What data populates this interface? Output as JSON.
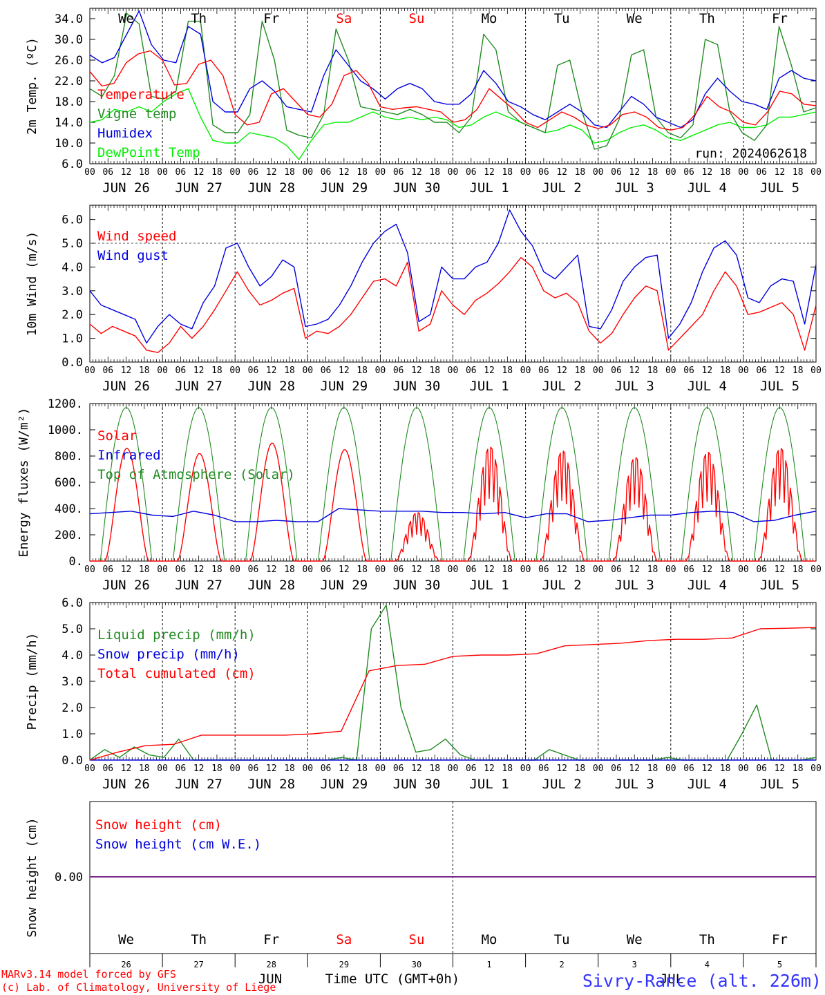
{
  "run_label": "run: 2024062618",
  "station": "Sivry-Rance (alt. 226m)",
  "credits": [
    "MARv3.14 model forced by GFS",
    "(c) Lab. of Climatology, University of Liege"
  ],
  "time_axis_label": "Time UTC (GMT+0h)",
  "month_labels": [
    "JUN",
    "JUL"
  ],
  "days": [
    "JUN 26",
    "JUN 27",
    "JUN 28",
    "JUN 29",
    "JUN 30",
    "JUL  1",
    "JUL  2",
    "JUL  3",
    "JUL  4",
    "JUL  5"
  ],
  "weekdays": [
    "We",
    "Th",
    "Fr",
    "Sa",
    "Su",
    "Mo",
    "Tu",
    "We",
    "Th",
    "Fr"
  ],
  "day_numbers": [
    "26",
    "27",
    "28",
    "29",
    "30",
    "1",
    "2",
    "3",
    "4",
    "5"
  ],
  "hour_ticks": [
    "00",
    "06",
    "12",
    "18"
  ],
  "colors": {
    "weekday": "#000000",
    "weekend": "#ff0000"
  },
  "chart_data": [
    {
      "type": "line",
      "ylabel": "2m Temp. (ºC)",
      "ylim": [
        6,
        36
      ],
      "yticks": [
        "6.0",
        "10.0",
        "14.0",
        "18.0",
        "22.0",
        "26.0",
        "30.0",
        "34.0"
      ],
      "series": [
        {
          "name": "Temperature",
          "color": "#ff0000",
          "values": [
            23.8,
            21.0,
            21.5,
            25.5,
            27.2,
            27.8,
            26.0,
            21.2,
            21.5,
            25.2,
            26.0,
            23.0,
            15.5,
            13.5,
            14.0,
            19.5,
            20.5,
            18.0,
            15.5,
            15.0,
            17.5,
            23.0,
            24.0,
            21.5,
            17.0,
            16.5,
            16.8,
            17.0,
            16.5,
            16.0,
            14.0,
            14.5,
            16.5,
            20.5,
            18.5,
            16.5,
            14.0,
            13.0,
            14.5,
            16.0,
            15.0,
            13.5,
            12.8,
            13.5,
            15.5,
            16.0,
            15.0,
            13.0,
            12.5,
            13.0,
            15.5,
            19.0,
            17.0,
            16.0,
            14.0,
            13.5,
            16.0,
            20.0,
            19.5,
            17.5,
            17.2
          ]
        },
        {
          "name": "Vigne temp",
          "color": "#228b22",
          "values": [
            20.5,
            19.0,
            23.0,
            35.0,
            33.0,
            19.0,
            18.5,
            20.0,
            33.5,
            33.5,
            13.5,
            12.0,
            12.0,
            15.5,
            33.5,
            26.0,
            12.5,
            11.5,
            11.0,
            15.5,
            32.0,
            26.0,
            17.0,
            16.5,
            16.0,
            15.5,
            16.5,
            15.5,
            14.0,
            14.0,
            12.0,
            15.0,
            31.0,
            28.0,
            16.0,
            14.0,
            13.0,
            12.0,
            25.0,
            26.0,
            16.0,
            8.8,
            9.5,
            14.5,
            27.0,
            28.0,
            15.0,
            12.0,
            11.0,
            13.5,
            30.0,
            29.0,
            16.0,
            12.0,
            10.5,
            13.5,
            32.5,
            25.0,
            16.0,
            16.8
          ]
        },
        {
          "name": "Humidex",
          "color": "#0000dd",
          "values": [
            27.0,
            25.5,
            26.5,
            31.0,
            35.5,
            29.0,
            26.0,
            25.5,
            32.5,
            31.0,
            18.0,
            16.0,
            16.0,
            20.5,
            22.0,
            20.0,
            17.0,
            16.5,
            16.0,
            23.0,
            28.0,
            25.0,
            22.0,
            20.5,
            18.5,
            20.5,
            21.5,
            20.5,
            18.0,
            17.5,
            17.5,
            19.5,
            24.0,
            21.5,
            18.0,
            17.0,
            15.5,
            14.5,
            16.0,
            17.5,
            16.0,
            13.5,
            13.0,
            16.0,
            19.0,
            17.5,
            15.0,
            14.0,
            13.0,
            14.5,
            19.5,
            22.5,
            20.0,
            18.0,
            17.5,
            16.5,
            22.5,
            24.0,
            22.5,
            22.0
          ]
        },
        {
          "name": "DewPoint Temp",
          "color": "#00ee00",
          "values": [
            14.0,
            14.5,
            16.5,
            16.0,
            17.0,
            16.0,
            18.0,
            19.5,
            20.5,
            15.0,
            10.5,
            10.0,
            10.0,
            12.0,
            11.5,
            11.0,
            9.5,
            6.8,
            10.5,
            13.5,
            14.0,
            14.0,
            15.0,
            16.0,
            15.0,
            14.5,
            15.0,
            14.5,
            15.0,
            14.5,
            13.0,
            13.5,
            15.0,
            16.0,
            15.0,
            14.0,
            13.0,
            12.0,
            12.5,
            13.5,
            12.5,
            10.0,
            10.5,
            12.0,
            13.0,
            13.5,
            12.5,
            11.0,
            10.5,
            11.5,
            12.5,
            13.5,
            14.0,
            13.0,
            13.0,
            13.5,
            15.0,
            15.0,
            15.5,
            16.0
          ]
        }
      ]
    },
    {
      "type": "line",
      "ylabel": "10m Wind (m/s)",
      "ylim": [
        0,
        6.6
      ],
      "yticks": [
        "0.0",
        "1.0",
        "2.0",
        "3.0",
        "4.0",
        "5.0",
        "6.0"
      ],
      "reference_line": 5.0,
      "series": [
        {
          "name": "Wind speed",
          "color": "#ff0000",
          "values": [
            1.6,
            1.2,
            1.5,
            1.3,
            1.1,
            0.5,
            0.4,
            0.8,
            1.5,
            1.0,
            1.5,
            2.2,
            3.0,
            3.8,
            3.0,
            2.4,
            2.6,
            2.9,
            3.1,
            1.0,
            1.3,
            1.2,
            1.5,
            2.0,
            2.7,
            3.4,
            3.5,
            3.2,
            4.2,
            1.3,
            1.6,
            3.0,
            2.4,
            2.0,
            2.6,
            2.9,
            3.3,
            3.8,
            4.4,
            4.0,
            3.0,
            2.7,
            2.9,
            2.5,
            1.3,
            0.8,
            1.2,
            2.0,
            2.7,
            3.2,
            3.0,
            0.5,
            1.0,
            1.5,
            2.0,
            3.0,
            3.8,
            3.2,
            2.0,
            2.1,
            2.3,
            2.5,
            2.0,
            0.5,
            2.4
          ]
        },
        {
          "name": "Wind gust",
          "color": "#0000dd",
          "values": [
            3.0,
            2.4,
            2.2,
            2.0,
            1.8,
            0.8,
            1.5,
            2.0,
            1.6,
            1.4,
            2.5,
            3.2,
            4.8,
            5.0,
            4.0,
            3.2,
            3.6,
            4.3,
            4.0,
            1.5,
            1.6,
            1.8,
            2.4,
            3.2,
            4.2,
            5.0,
            5.5,
            5.8,
            4.6,
            1.7,
            2.0,
            4.0,
            3.5,
            3.5,
            4.0,
            4.2,
            5.0,
            6.4,
            5.5,
            4.9,
            3.8,
            3.5,
            4.0,
            4.5,
            1.5,
            1.4,
            2.2,
            3.4,
            4.0,
            4.4,
            4.5,
            1.0,
            1.6,
            2.5,
            3.8,
            4.8,
            5.1,
            4.5,
            2.7,
            2.5,
            3.2,
            3.5,
            3.4,
            1.6,
            4.1
          ]
        }
      ]
    },
    {
      "type": "line",
      "ylabel": "Energy fluxes (W/m²)",
      "ylim": [
        0,
        1200
      ],
      "yticks": [
        "0.",
        "200.",
        "400.",
        "600.",
        "800.",
        "1000.",
        "1200."
      ],
      "series": [
        {
          "name": "Solar",
          "color": "#ff0000",
          "peaks": [
            860,
            820,
            900,
            850,
            370,
            870,
            840,
            790,
            830,
            860
          ]
        },
        {
          "name": "Infrared",
          "color": "#0000dd",
          "values": [
            360,
            370,
            380,
            350,
            340,
            380,
            350,
            300,
            300,
            310,
            300,
            300,
            400,
            390,
            380,
            380,
            380,
            370,
            370,
            360,
            370,
            330,
            360,
            360,
            300,
            310,
            330,
            350,
            350,
            370,
            380,
            370,
            300,
            310,
            350,
            380
          ]
        },
        {
          "name": "Top of Atmosphere (Solar)",
          "color": "#228b22",
          "peak": 1170
        }
      ]
    },
    {
      "type": "line",
      "ylabel": "Precip (mm/h)",
      "ylim": [
        0,
        6
      ],
      "yticks": [
        "0.0",
        "1.0",
        "2.0",
        "3.0",
        "4.0",
        "5.0",
        "6.0"
      ],
      "series": [
        {
          "name": "Liquid precip (mm/h)",
          "color": "#228b22",
          "values": [
            0,
            0.4,
            0.1,
            0.5,
            0.2,
            0.1,
            0.8,
            0,
            0,
            0,
            0,
            0,
            0,
            0,
            0,
            0,
            0,
            0.1,
            0,
            5.0,
            5.9,
            2.0,
            0.3,
            0.4,
            0.8,
            0.2,
            0,
            0,
            0,
            0,
            0,
            0.4,
            0.2,
            0,
            0,
            0,
            0,
            0,
            0,
            0.1,
            0,
            0,
            0,
            0,
            1.0,
            2.1,
            0,
            0,
            0,
            0.1
          ]
        },
        {
          "name": "Snow precip (mm/h)",
          "color": "#0000dd",
          "values": [
            0,
            0
          ]
        },
        {
          "name": "Total cumulated (cm)",
          "color": "#ff0000",
          "values": [
            0,
            0.3,
            0.55,
            0.6,
            0.95,
            0.95,
            0.95,
            0.95,
            1.0,
            1.1,
            3.4,
            3.6,
            3.65,
            3.95,
            4.0,
            4.0,
            4.05,
            4.35,
            4.4,
            4.45,
            4.55,
            4.6,
            4.6,
            4.65,
            5.0,
            5.02,
            5.05
          ]
        }
      ]
    },
    {
      "type": "line",
      "ylabel": "Snow height (cm)",
      "yticks": [
        "0.00"
      ],
      "series": [
        {
          "name": "Snow height (cm)",
          "color": "#ff0000",
          "values": [
            0,
            0
          ]
        },
        {
          "name": "Snow height (cm W.E.)",
          "color": "#0000dd",
          "values": [
            0,
            0
          ]
        }
      ]
    }
  ]
}
